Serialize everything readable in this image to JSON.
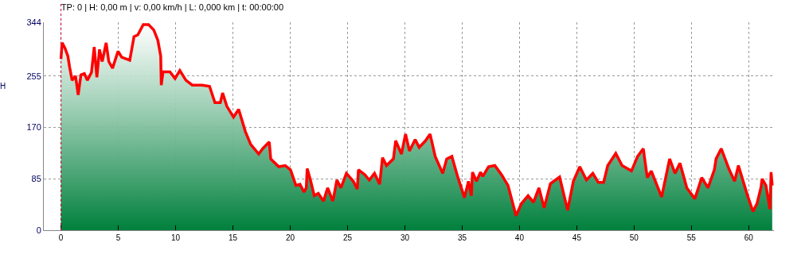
{
  "chart_data": {
    "type": "area",
    "title": "TP: 0 | H: 0,00 m | v: 0,00 km/h | L: 0,000 km | t: 00:00:00",
    "ylabel": "H",
    "x": [
      0,
      0.1,
      0.35,
      0.6,
      0.75,
      0.97,
      1.27,
      1.5,
      1.74,
      2.04,
      2.3,
      2.66,
      2.9,
      3.13,
      3.36,
      3.6,
      3.94,
      4.17,
      4.5,
      4.98,
      5.3,
      6.0,
      6.37,
      6.7,
      7.18,
      7.64,
      8.1,
      8.45,
      8.7,
      8.75,
      8.9,
      9.5,
      9.95,
      10.37,
      10.9,
      11.45,
      12.27,
      12.96,
      13.43,
      13.9,
      14.1,
      14.47,
      15.05,
      15.5,
      16.09,
      16.55,
      17.25,
      17.6,
      18.17,
      18.3,
      19.0,
      19.56,
      20.02,
      20.5,
      20.85,
      21.2,
      21.4,
      21.48,
      21.76,
      22.1,
      22.45,
      22.9,
      23.26,
      23.72,
      24.07,
      24.42,
      24.9,
      25.5,
      25.85,
      25.95,
      26.5,
      26.9,
      27.35,
      27.8,
      28.05,
      28.4,
      29.0,
      29.2,
      29.7,
      30.06,
      30.4,
      30.9,
      31.25,
      31.8,
      32.2,
      32.65,
      33.3,
      33.65,
      34.1,
      34.6,
      35.2,
      35.55,
      35.8,
      35.9,
      36.25,
      36.6,
      36.8,
      37.3,
      37.85,
      38.43,
      39.0,
      39.7,
      40.17,
      40.75,
      41.22,
      41.7,
      42.15,
      42.7,
      43.5,
      44.2,
      44.7,
      45.26,
      45.84,
      46.4,
      46.88,
      47.34,
      47.7,
      48.4,
      48.95,
      49.77,
      50.3,
      50.8,
      51.15,
      51.5,
      52.4,
      53.1,
      53.57,
      54.0,
      54.6,
      55.3,
      55.9,
      56.45,
      57.0,
      57.15,
      57.6,
      58.3,
      58.77,
      59.1,
      59.9,
      60.37,
      60.72,
      61.06,
      61.17,
      61.5,
      61.85,
      61.95,
      62.05
    ],
    "series": [
      {
        "color": "#ff0000",
        "values": [
          283,
          310,
          301,
          288,
          270,
          248,
          255,
          224,
          257,
          259,
          248,
          261,
          303,
          253,
          299,
          279,
          310,
          279,
          268,
          296,
          286,
          281,
          320,
          323,
          340,
          340,
          331,
          314,
          288,
          240,
          262,
          262,
          251,
          264,
          248,
          240,
          240,
          238,
          211,
          211,
          227,
          205,
          187,
          200,
          163,
          142,
          126,
          135,
          146,
          118,
          105,
          107,
          100,
          74,
          76,
          63,
          70,
          102,
          83,
          57,
          61,
          48,
          70,
          48,
          83,
          70,
          94,
          81,
          68,
          100,
          92,
          83,
          94,
          76,
          120,
          107,
          118,
          148,
          126,
          159,
          131,
          150,
          137,
          148,
          159,
          122,
          94,
          118,
          122,
          89,
          54,
          81,
          57,
          96,
          81,
          96,
          89,
          105,
          107,
          92,
          74,
          24,
          44,
          57,
          46,
          70,
          37,
          77,
          88,
          33,
          81,
          105,
          83,
          94,
          79,
          79,
          107,
          127,
          107,
          98,
          122,
          135,
          87,
          98,
          55,
          118,
          94,
          111,
          70,
          52,
          87,
          70,
          100,
          118,
          135,
          100,
          81,
          107,
          57,
          31,
          44,
          70,
          85,
          74,
          35,
          96,
          74
        ]
      }
    ],
    "xlim": [
      -1.5,
      62.2
    ],
    "ylim": [
      0,
      344
    ],
    "xticks": [
      0,
      5,
      10,
      15,
      20,
      25,
      30,
      35,
      40,
      45,
      50,
      55,
      60
    ],
    "yticks": [
      0,
      85,
      170,
      255,
      344
    ],
    "grid": true,
    "marker": "none",
    "line_style": "solid",
    "ref_lines": [
      {
        "axis": "x",
        "value": 0,
        "color": "#cc0033",
        "line_style": "dotted"
      }
    ]
  }
}
